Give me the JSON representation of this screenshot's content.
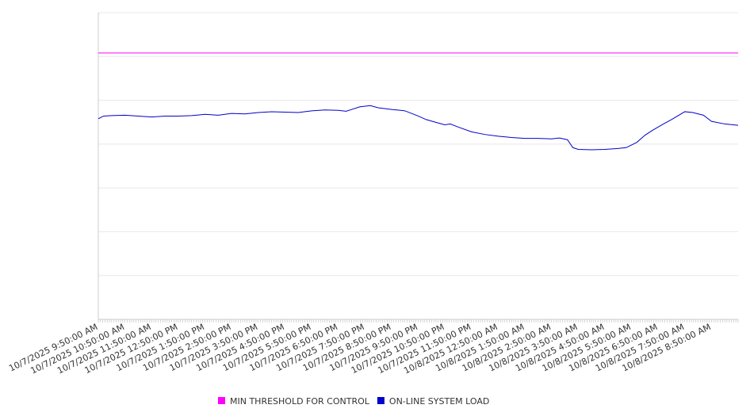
{
  "chart_data": {
    "type": "line",
    "title": "",
    "xlabel": "",
    "ylabel": "",
    "y_range": [
      0,
      7000
    ],
    "x_tick_labels": [
      "10/7/2025 9:50:00 AM",
      "10/7/2025 10:50:00 AM",
      "10/7/2025 11:50:00 AM",
      "10/7/2025 12:50:00 PM",
      "10/7/2025 1:50:00 PM",
      "10/7/2025 2:50:00 PM",
      "10/7/2025 3:50:00 PM",
      "10/7/2025 4:50:00 PM",
      "10/7/2025 5:50:00 PM",
      "10/7/2025 6:50:00 PM",
      "10/7/2025 7:50:00 PM",
      "10/7/2025 8:50:00 PM",
      "10/7/2025 9:50:00 PM",
      "10/7/2025 10:50:00 PM",
      "10/7/2025 11:50:00 PM",
      "10/8/2025 12:50:00 AM",
      "10/8/2025 1:50:00 AM",
      "10/8/2025 2:50:00 AM",
      "10/8/2025 3:50:00 AM",
      "10/8/2025 4:50:00 AM",
      "10/8/2025 5:50:00 AM",
      "10/8/2025 6:50:00 AM",
      "10/8/2025 7:50:00 AM",
      "10/8/2025 8:50:00 AM"
    ],
    "x_hours": [
      0,
      24
    ],
    "gridlines": true,
    "legend_position": "bottom",
    "series": [
      {
        "name": "MIN THRESHOLD FOR CONTROL",
        "color": "#ff00ff",
        "points": [
          [
            0,
            6080
          ],
          [
            24,
            6080
          ]
        ]
      },
      {
        "name": "ON-LINE SYSTEM LOAD",
        "color": "#0000cc",
        "points": [
          [
            0,
            4580
          ],
          [
            0.2,
            4640
          ],
          [
            0.5,
            4650
          ],
          [
            1.0,
            4660
          ],
          [
            1.5,
            4640
          ],
          [
            2.0,
            4620
          ],
          [
            2.5,
            4640
          ],
          [
            3.0,
            4640
          ],
          [
            3.5,
            4650
          ],
          [
            4.0,
            4680
          ],
          [
            4.5,
            4660
          ],
          [
            5.0,
            4700
          ],
          [
            5.5,
            4690
          ],
          [
            6.0,
            4720
          ],
          [
            6.5,
            4740
          ],
          [
            7.0,
            4730
          ],
          [
            7.5,
            4720
          ],
          [
            8.0,
            4760
          ],
          [
            8.5,
            4780
          ],
          [
            9.0,
            4770
          ],
          [
            9.3,
            4750
          ],
          [
            9.5,
            4790
          ],
          [
            9.8,
            4850
          ],
          [
            10.2,
            4880
          ],
          [
            10.5,
            4830
          ],
          [
            11.0,
            4790
          ],
          [
            11.5,
            4760
          ],
          [
            12.0,
            4640
          ],
          [
            12.3,
            4560
          ],
          [
            12.7,
            4490
          ],
          [
            13.0,
            4440
          ],
          [
            13.2,
            4460
          ],
          [
            13.5,
            4390
          ],
          [
            14.0,
            4280
          ],
          [
            14.5,
            4220
          ],
          [
            15.0,
            4180
          ],
          [
            15.5,
            4150
          ],
          [
            16.0,
            4130
          ],
          [
            16.5,
            4130
          ],
          [
            17.0,
            4120
          ],
          [
            17.3,
            4140
          ],
          [
            17.6,
            4100
          ],
          [
            17.8,
            3920
          ],
          [
            18.0,
            3880
          ],
          [
            18.5,
            3870
          ],
          [
            19.0,
            3880
          ],
          [
            19.5,
            3900
          ],
          [
            19.8,
            3920
          ],
          [
            20.2,
            4040
          ],
          [
            20.5,
            4200
          ],
          [
            20.8,
            4320
          ],
          [
            21.2,
            4460
          ],
          [
            21.5,
            4560
          ],
          [
            22.0,
            4740
          ],
          [
            22.3,
            4720
          ],
          [
            22.7,
            4660
          ],
          [
            23.0,
            4520
          ],
          [
            23.5,
            4460
          ],
          [
            24.0,
            4430
          ]
        ]
      }
    ]
  }
}
